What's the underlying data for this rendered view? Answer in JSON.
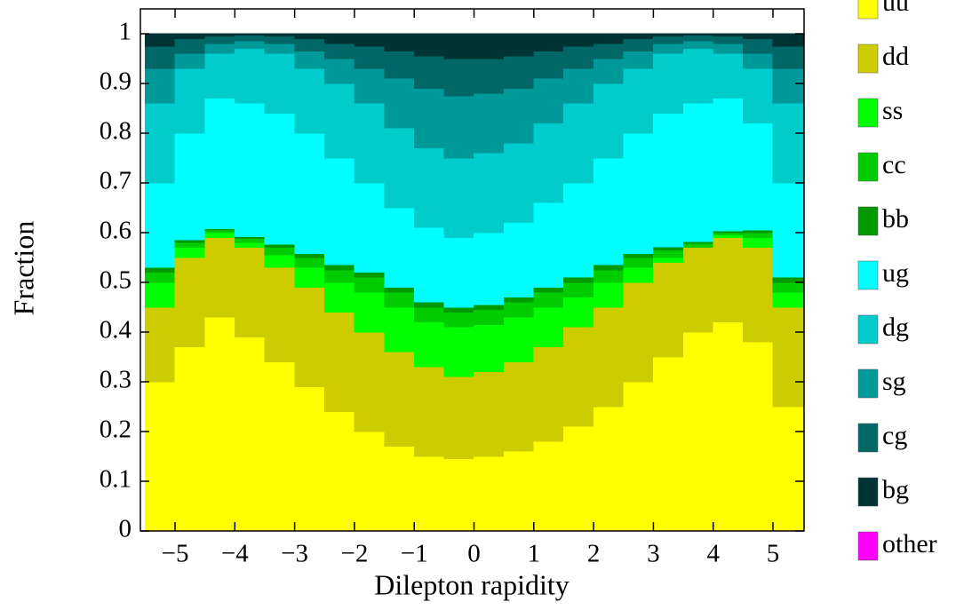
{
  "chart_data": {
    "type": "histogram",
    "stacked": true,
    "xlabel": "Dilepton rapidity",
    "ylabel": "Fraction",
    "bins": [
      -5.5,
      -5,
      -4.5,
      -4,
      -3.5,
      -3,
      -2.5,
      -2,
      -1.5,
      -1,
      -0.5,
      0,
      0.5,
      1,
      1.5,
      2,
      2.5,
      3,
      3.5,
      4,
      4.5,
      5,
      5.5
    ],
    "xlim": [
      -5.58,
      5.52
    ],
    "ylim": [
      0,
      1.05
    ],
    "xticks": [
      {
        "value": -5,
        "label": "−5"
      },
      {
        "value": -4,
        "label": "−4"
      },
      {
        "value": -3,
        "label": "−3"
      },
      {
        "value": -2,
        "label": "−2"
      },
      {
        "value": -1,
        "label": "−1"
      },
      0,
      1,
      2,
      3,
      4,
      5
    ],
    "yticks": [
      0,
      0.1,
      0.2,
      0.3,
      0.4,
      0.5,
      0.6,
      0.7,
      0.8,
      0.9,
      1
    ],
    "series": [
      {
        "name": "uu",
        "color": "#ffff00",
        "values": [
          0.3,
          0.37,
          0.43,
          0.39,
          0.34,
          0.29,
          0.24,
          0.2,
          0.17,
          0.15,
          0.145,
          0.15,
          0.16,
          0.18,
          0.21,
          0.25,
          0.3,
          0.35,
          0.4,
          0.42,
          0.38,
          0.25
        ]
      },
      {
        "name": "dd",
        "color": "#cccc00",
        "values": [
          0.15,
          0.18,
          0.16,
          0.18,
          0.19,
          0.2,
          0.2,
          0.2,
          0.19,
          0.18,
          0.165,
          0.17,
          0.18,
          0.19,
          0.2,
          0.2,
          0.2,
          0.19,
          0.17,
          0.17,
          0.19,
          0.2
        ]
      },
      {
        "name": "ss",
        "color": "#00ff00",
        "values": [
          0.05,
          0.02,
          0.01,
          0.01,
          0.025,
          0.04,
          0.06,
          0.08,
          0.09,
          0.09,
          0.1,
          0.095,
          0.09,
          0.08,
          0.06,
          0.05,
          0.03,
          0.01,
          0.0,
          0.005,
          0.02,
          0.03
        ]
      },
      {
        "name": "cc",
        "color": "#00cc00",
        "values": [
          0.02,
          0.01,
          0.005,
          0.008,
          0.015,
          0.02,
          0.025,
          0.03,
          0.03,
          0.03,
          0.03,
          0.03,
          0.03,
          0.03,
          0.03,
          0.025,
          0.02,
          0.015,
          0.008,
          0.005,
          0.01,
          0.02
        ]
      },
      {
        "name": "bb",
        "color": "#009900",
        "values": [
          0.01,
          0.005,
          0.003,
          0.004,
          0.006,
          0.008,
          0.01,
          0.01,
          0.01,
          0.01,
          0.01,
          0.01,
          0.01,
          0.01,
          0.01,
          0.01,
          0.008,
          0.006,
          0.004,
          0.003,
          0.005,
          0.01
        ]
      },
      {
        "name": "ug",
        "color": "#00ffff",
        "values": [
          0.17,
          0.215,
          0.262,
          0.268,
          0.264,
          0.242,
          0.215,
          0.18,
          0.16,
          0.15,
          0.14,
          0.145,
          0.15,
          0.17,
          0.19,
          0.215,
          0.242,
          0.269,
          0.278,
          0.267,
          0.215,
          0.19
        ]
      },
      {
        "name": "dg",
        "color": "#00cccc",
        "values": [
          0.16,
          0.13,
          0.09,
          0.11,
          0.12,
          0.13,
          0.15,
          0.16,
          0.16,
          0.16,
          0.16,
          0.16,
          0.16,
          0.16,
          0.16,
          0.15,
          0.13,
          0.12,
          0.11,
          0.09,
          0.11,
          0.16
        ]
      },
      {
        "name": "sg",
        "color": "#009999",
        "values": [
          0.07,
          0.03,
          0.02,
          0.015,
          0.02,
          0.035,
          0.05,
          0.07,
          0.1,
          0.12,
          0.125,
          0.12,
          0.11,
          0.09,
          0.07,
          0.05,
          0.035,
          0.02,
          0.015,
          0.02,
          0.03,
          0.07
        ]
      },
      {
        "name": "cg",
        "color": "#006666",
        "values": [
          0.045,
          0.03,
          0.015,
          0.012,
          0.015,
          0.025,
          0.03,
          0.045,
          0.055,
          0.065,
          0.075,
          0.07,
          0.065,
          0.055,
          0.045,
          0.03,
          0.025,
          0.015,
          0.012,
          0.015,
          0.03,
          0.045
        ]
      },
      {
        "name": "bg",
        "color": "#003333",
        "values": [
          0.025,
          0.01,
          0.005,
          0.003,
          0.005,
          0.01,
          0.02,
          0.025,
          0.035,
          0.045,
          0.05,
          0.05,
          0.045,
          0.035,
          0.025,
          0.02,
          0.01,
          0.005,
          0.003,
          0.005,
          0.01,
          0.025
        ]
      },
      {
        "name": "other",
        "color": "#ff00ff",
        "values": [
          0,
          0,
          0,
          0,
          0,
          0,
          0,
          0,
          0,
          0,
          0,
          0,
          0,
          0,
          0,
          0,
          0,
          0,
          0,
          0,
          0,
          0
        ]
      }
    ]
  }
}
